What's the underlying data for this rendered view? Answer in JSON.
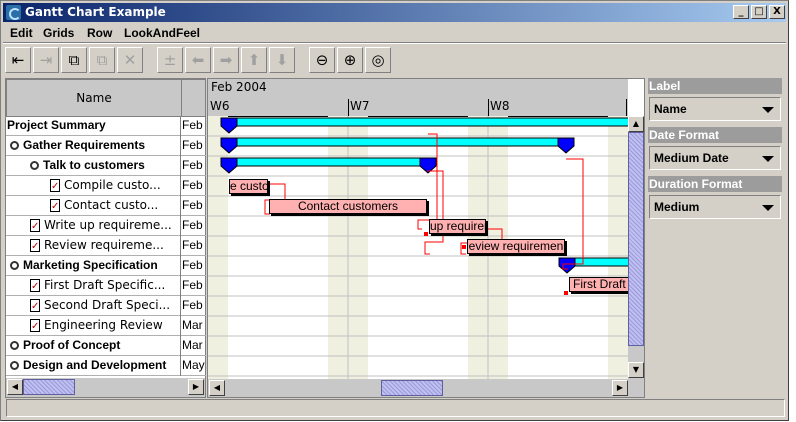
{
  "window": {
    "title": "Gantt Chart Example",
    "minimize": "_",
    "maximize": "□",
    "close": "X"
  },
  "menu": [
    "Edit",
    "Grids",
    "Row",
    "LookAndFeel"
  ],
  "toolbar": [
    {
      "icon": "indent-icon",
      "glyph": "⇤",
      "enabled": true
    },
    {
      "icon": "outdent-icon",
      "glyph": "⇥",
      "enabled": false
    },
    {
      "icon": "link-icon",
      "glyph": "⧉",
      "enabled": true
    },
    {
      "icon": "unlink-icon",
      "glyph": "⧉",
      "enabled": false
    },
    {
      "icon": "delete-icon",
      "glyph": "✕",
      "enabled": false
    },
    {
      "icon": "insert-icon",
      "glyph": "±",
      "enabled": false
    },
    {
      "icon": "arrow-left-icon",
      "glyph": "⬅",
      "enabled": false
    },
    {
      "icon": "arrow-right-icon",
      "glyph": "➡",
      "enabled": false
    },
    {
      "icon": "arrow-up-icon",
      "glyph": "⬆",
      "enabled": false
    },
    {
      "icon": "arrow-down-icon",
      "glyph": "⬇",
      "enabled": false
    },
    {
      "icon": "zoom-out-icon",
      "glyph": "⊖",
      "enabled": true
    },
    {
      "icon": "zoom-in-icon",
      "glyph": "⊕",
      "enabled": true
    },
    {
      "icon": "zoom-fit-icon",
      "glyph": "◎",
      "enabled": true
    }
  ],
  "table": {
    "header": "Name",
    "rows": [
      {
        "name": "Project Summary",
        "date": "Feb",
        "bold": true,
        "indent": 0,
        "icon": "none"
      },
      {
        "name": "Gather Requirements",
        "date": "Feb",
        "bold": true,
        "indent": 1,
        "icon": "pin"
      },
      {
        "name": "Talk to customers",
        "date": "Feb",
        "bold": true,
        "indent": 2,
        "icon": "pin"
      },
      {
        "name": "Compile custo...",
        "date": "Feb",
        "bold": false,
        "indent": 3,
        "icon": "task"
      },
      {
        "name": "Contact custo...",
        "date": "Feb",
        "bold": false,
        "indent": 3,
        "icon": "task"
      },
      {
        "name": "Write up requireme...",
        "date": "Feb",
        "bold": false,
        "indent": 2,
        "icon": "task"
      },
      {
        "name": "Review requireme...",
        "date": "Feb",
        "bold": false,
        "indent": 2,
        "icon": "task"
      },
      {
        "name": "Marketing Specification",
        "date": "Feb",
        "bold": true,
        "indent": 1,
        "icon": "pin"
      },
      {
        "name": "First Draft Specific...",
        "date": "Feb",
        "bold": false,
        "indent": 2,
        "icon": "task"
      },
      {
        "name": "Second Draft Speci...",
        "date": "Feb",
        "bold": false,
        "indent": 2,
        "icon": "task"
      },
      {
        "name": "Engineering Review",
        "date": "Mar",
        "bold": false,
        "indent": 1,
        "icon": "task"
      },
      {
        "name": "Proof of Concept",
        "date": "Mar",
        "bold": true,
        "indent": 1,
        "icon": "collapsed"
      },
      {
        "name": "Design and Development",
        "date": "May",
        "bold": true,
        "indent": 1,
        "icon": "collapsed"
      }
    ]
  },
  "gantt": {
    "month": "Feb 2004",
    "weeks": [
      "W6",
      "W7",
      "W8"
    ],
    "tasks": [
      "e custo",
      "Contact customers",
      "up requirem",
      "eview requiremen",
      "First Draft"
    ],
    "colors": {
      "summary": "#00ffff",
      "marker": "#0000ff",
      "task": "#ffb0b0",
      "dependency": "#ff0000",
      "weekend": "#f0f0e0"
    }
  },
  "panel": {
    "label_title": "Label",
    "label_value": "Name",
    "date_title": "Date Format",
    "date_value": "Medium Date",
    "duration_title": "Duration Format",
    "duration_value": "Medium"
  }
}
